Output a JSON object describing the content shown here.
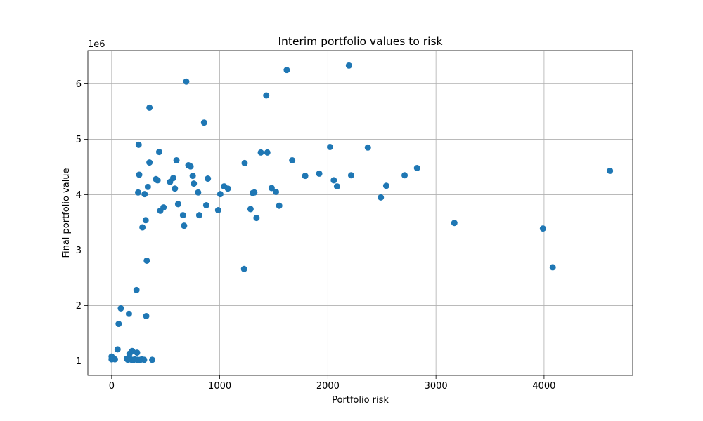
{
  "chart_data": {
    "type": "scatter",
    "title": "Interim portfolio values to risk",
    "xlabel": "Portfolio risk",
    "ylabel": "Final portfolio value",
    "y_offset_label": "1e6",
    "xlim": [
      -220,
      4820
    ],
    "ylim": [
      0.74,
      6.6
    ],
    "x_ticks": [
      0,
      1000,
      2000,
      3000,
      4000
    ],
    "x_tick_labels": [
      "0",
      "1000",
      "2000",
      "3000",
      "4000"
    ],
    "y_ticks": [
      1,
      2,
      3,
      4,
      5,
      6
    ],
    "y_tick_labels": [
      "1",
      "2",
      "3",
      "4",
      "5",
      "6"
    ],
    "grid": true,
    "marker_color": "#1f77b4",
    "series": [
      {
        "points": [
          [
            0,
            1.08
          ],
          [
            0,
            1.03
          ],
          [
            30,
            1.03
          ],
          [
            55,
            1.21
          ],
          [
            65,
            1.67
          ],
          [
            85,
            1.95
          ],
          [
            140,
            1.04
          ],
          [
            150,
            1.02
          ],
          [
            160,
            1.85
          ],
          [
            165,
            1.13
          ],
          [
            175,
            1.03
          ],
          [
            185,
            1.02
          ],
          [
            190,
            1.18
          ],
          [
            205,
            1.02
          ],
          [
            215,
            1.03
          ],
          [
            230,
            2.28
          ],
          [
            235,
            1.15
          ],
          [
            240,
            1.02
          ],
          [
            245,
            4.04
          ],
          [
            250,
            4.9
          ],
          [
            255,
            4.36
          ],
          [
            265,
            1.02
          ],
          [
            280,
            1.03
          ],
          [
            285,
            3.41
          ],
          [
            300,
            1.02
          ],
          [
            305,
            4.01
          ],
          [
            315,
            3.54
          ],
          [
            320,
            1.81
          ],
          [
            325,
            2.81
          ],
          [
            335,
            4.14
          ],
          [
            350,
            4.58
          ],
          [
            350,
            5.57
          ],
          [
            375,
            1.02
          ],
          [
            410,
            4.28
          ],
          [
            425,
            4.26
          ],
          [
            440,
            4.77
          ],
          [
            450,
            3.71
          ],
          [
            480,
            3.77
          ],
          [
            540,
            4.23
          ],
          [
            570,
            4.3
          ],
          [
            585,
            4.11
          ],
          [
            600,
            4.62
          ],
          [
            615,
            3.83
          ],
          [
            660,
            3.63
          ],
          [
            670,
            3.44
          ],
          [
            690,
            6.04
          ],
          [
            710,
            4.53
          ],
          [
            730,
            4.51
          ],
          [
            750,
            4.34
          ],
          [
            760,
            4.2
          ],
          [
            800,
            4.04
          ],
          [
            810,
            3.63
          ],
          [
            855,
            5.3
          ],
          [
            875,
            3.81
          ],
          [
            890,
            4.29
          ],
          [
            985,
            3.72
          ],
          [
            1005,
            4.01
          ],
          [
            1040,
            4.15
          ],
          [
            1075,
            4.11
          ],
          [
            1225,
            2.66
          ],
          [
            1230,
            4.57
          ],
          [
            1285,
            3.74
          ],
          [
            1305,
            4.03
          ],
          [
            1320,
            4.04
          ],
          [
            1340,
            3.58
          ],
          [
            1380,
            4.76
          ],
          [
            1430,
            5.79
          ],
          [
            1440,
            4.76
          ],
          [
            1480,
            4.12
          ],
          [
            1520,
            4.05
          ],
          [
            1550,
            3.8
          ],
          [
            1620,
            6.25
          ],
          [
            1670,
            4.62
          ],
          [
            1790,
            4.34
          ],
          [
            1920,
            4.38
          ],
          [
            2020,
            4.86
          ],
          [
            2055,
            4.26
          ],
          [
            2085,
            4.15
          ],
          [
            2195,
            6.33
          ],
          [
            2215,
            4.35
          ],
          [
            2370,
            4.85
          ],
          [
            2490,
            3.95
          ],
          [
            2540,
            4.16
          ],
          [
            2710,
            4.35
          ],
          [
            2825,
            4.48
          ],
          [
            3170,
            3.49
          ],
          [
            3990,
            3.39
          ],
          [
            4080,
            2.69
          ],
          [
            4610,
            4.43
          ]
        ]
      }
    ]
  }
}
